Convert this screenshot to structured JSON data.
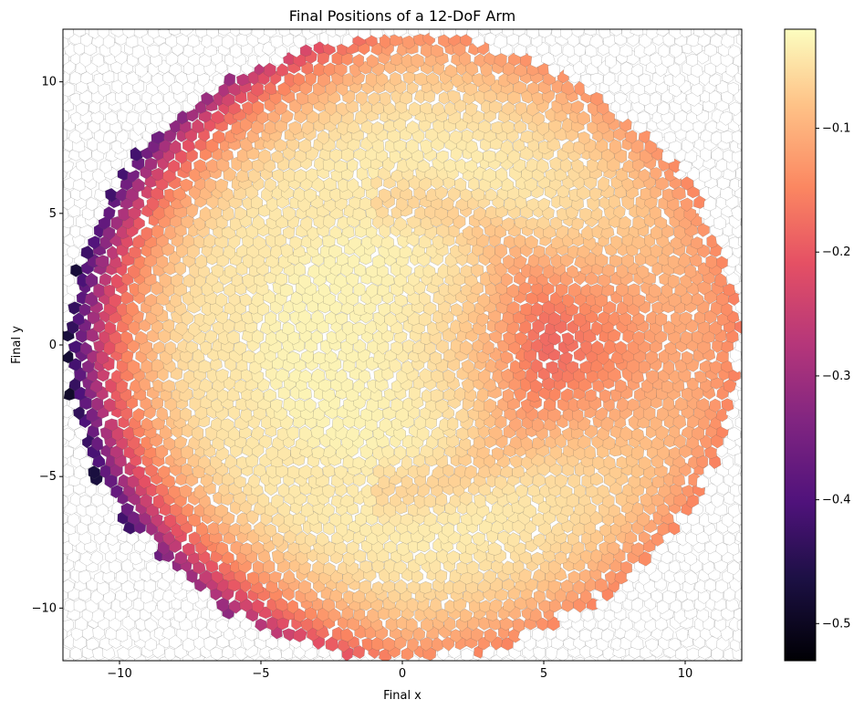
{
  "chart_data": {
    "type": "heatmap",
    "title": "Final Positions of a 12-DoF Arm",
    "xlabel": "Final x",
    "ylabel": "Final y",
    "xlim": [
      -12,
      12
    ],
    "ylim": [
      -12,
      12
    ],
    "xticks": [
      -10,
      -5,
      0,
      5,
      10
    ],
    "yticks": [
      -10,
      -5,
      0,
      5,
      10
    ],
    "xtick_labels": [
      "−10",
      "−5",
      "0",
      "5",
      "10"
    ],
    "ytick_labels": [
      "−10",
      "−5",
      "0",
      "5",
      "10"
    ],
    "grid": false,
    "colormap": "magma",
    "colorbar": {
      "range": [
        -0.53,
        -0.02
      ],
      "ticks": [
        -0.5,
        -0.4,
        -0.3,
        -0.2,
        -0.1
      ],
      "tick_labels": [
        "−0.5",
        "−0.4",
        "−0.3",
        "−0.2",
        "−0.1"
      ]
    },
    "reachable_region": {
      "shape": "disc",
      "center": [
        0,
        0
      ],
      "radius": 12,
      "note_free_text": ""
    },
    "value_field": {
      "edge_value": -0.52,
      "interior_value": -0.03,
      "hot_spot": {
        "x": 6,
        "y": 0,
        "value": -0.17
      },
      "arc_band_center": [
        -0.5,
        0
      ]
    },
    "cell_outline_color": "#555555",
    "empty_cell_fill": "#ffffff"
  }
}
